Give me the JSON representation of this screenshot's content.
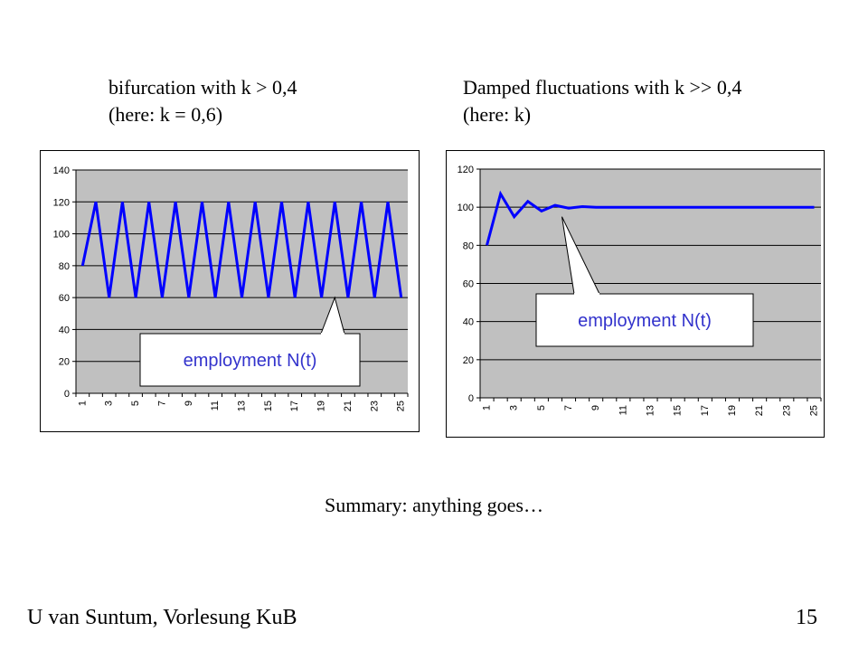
{
  "slide": {
    "left_heading": {
      "line1": "bifurcation with k > 0,4",
      "line2": "(here: k = 0,6)"
    },
    "right_heading": {
      "line1": "Damped fluctuations with k >> 0,4",
      "line2": "(here: k)"
    },
    "summary": "Summary: anything goes…",
    "footer_author": "U van Suntum, Vorlesung KuB",
    "page_number": "15"
  },
  "chart_data": [
    {
      "type": "line",
      "title": "",
      "xlabel": "",
      "ylabel": "",
      "x": [
        1,
        2,
        3,
        4,
        5,
        6,
        7,
        8,
        9,
        10,
        11,
        12,
        13,
        14,
        15,
        16,
        17,
        18,
        19,
        20,
        21,
        22,
        23,
        24,
        25
      ],
      "x_tick_labels": [
        "1",
        "3",
        "5",
        "7",
        "9",
        "11",
        "13",
        "15",
        "17",
        "19",
        "21",
        "23",
        "25"
      ],
      "ylim": [
        0,
        140
      ],
      "y_ticks": [
        0,
        20,
        40,
        60,
        80,
        100,
        120,
        140
      ],
      "grid": true,
      "plot_background": "#c0c0c0",
      "series": [
        {
          "color": "#0000ff",
          "values": [
            80,
            120,
            60,
            120,
            60,
            120,
            60,
            120,
            60,
            120,
            60,
            120,
            60,
            120,
            60,
            120,
            60,
            120,
            60,
            120,
            60,
            120,
            60,
            120,
            60
          ]
        }
      ],
      "annotation": {
        "text": "employment N(t)",
        "target_x": 20,
        "target_y": 60
      }
    },
    {
      "type": "line",
      "title": "",
      "xlabel": "",
      "ylabel": "",
      "x": [
        1,
        2,
        3,
        4,
        5,
        6,
        7,
        8,
        9,
        10,
        11,
        12,
        13,
        14,
        15,
        16,
        17,
        18,
        19,
        20,
        21,
        22,
        23,
        24,
        25
      ],
      "x_tick_labels": [
        "1",
        "3",
        "5",
        "7",
        "9",
        "11",
        "13",
        "15",
        "17",
        "19",
        "21",
        "23",
        "25"
      ],
      "ylim": [
        0,
        120
      ],
      "y_ticks": [
        0,
        20,
        40,
        60,
        80,
        100,
        120
      ],
      "grid": true,
      "plot_background": "#c0c0c0",
      "series": [
        {
          "color": "#0000ff",
          "values": [
            80,
            107,
            95,
            103,
            98,
            101,
            99.5,
            100.3,
            100,
            100,
            100,
            100,
            100,
            100,
            100,
            100,
            100,
            100,
            100,
            100,
            100,
            100,
            100,
            100,
            100
          ]
        }
      ],
      "annotation": {
        "text": "employment N(t)",
        "target_x": 6.5,
        "target_y": 95
      }
    }
  ]
}
